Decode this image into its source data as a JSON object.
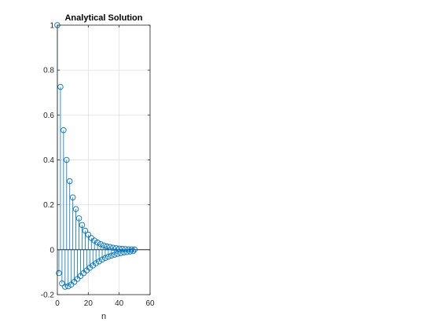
{
  "chart_data": {
    "type": "stem",
    "title": "Analytical Solution",
    "xlabel": "n",
    "ylabel": "",
    "xlim": [
      0,
      60
    ],
    "ylim": [
      -0.2,
      1
    ],
    "xticks": [
      0,
      20,
      40,
      60
    ],
    "yticks": [
      -0.2,
      0,
      0.2,
      0.4,
      0.6,
      0.8,
      1
    ],
    "xtick_labels": [
      "0",
      "20",
      "40",
      "60"
    ],
    "ytick_labels": [
      "-0.2",
      "0",
      "0.2",
      "0.4",
      "0.6",
      "0.8",
      "1"
    ],
    "grid": true,
    "x": [
      0,
      1,
      2,
      3,
      4,
      5,
      6,
      7,
      8,
      9,
      10,
      11,
      12,
      13,
      14,
      15,
      16,
      17,
      18,
      19,
      20,
      21,
      22,
      23,
      24,
      25,
      26,
      27,
      28,
      29,
      30,
      31,
      32,
      33,
      34,
      35,
      36,
      37,
      38,
      39,
      40,
      41,
      42,
      43,
      44,
      45,
      46,
      47,
      48,
      49,
      50
    ],
    "y": [
      1.0,
      -0.104,
      0.725,
      -0.15,
      0.532,
      -0.165,
      0.4,
      -0.163,
      0.305,
      -0.155,
      0.233,
      -0.143,
      0.181,
      -0.13,
      0.14,
      -0.117,
      0.11,
      -0.104,
      0.085,
      -0.092,
      0.067,
      -0.08,
      0.052,
      -0.07,
      0.041,
      -0.06,
      0.032,
      -0.052,
      0.025,
      -0.044,
      0.019,
      -0.037,
      0.015,
      -0.031,
      0.012,
      -0.026,
      0.009,
      -0.022,
      0.007,
      -0.018,
      0.005,
      -0.015,
      0.004,
      -0.012,
      0.003,
      -0.01,
      0.002,
      -0.008,
      0.0015,
      -0.006,
      0.001
    ]
  },
  "colors": {
    "series": "#0072BD",
    "grid": "#dcdcdc",
    "axis": "#262626",
    "zero_line": "#000000"
  }
}
